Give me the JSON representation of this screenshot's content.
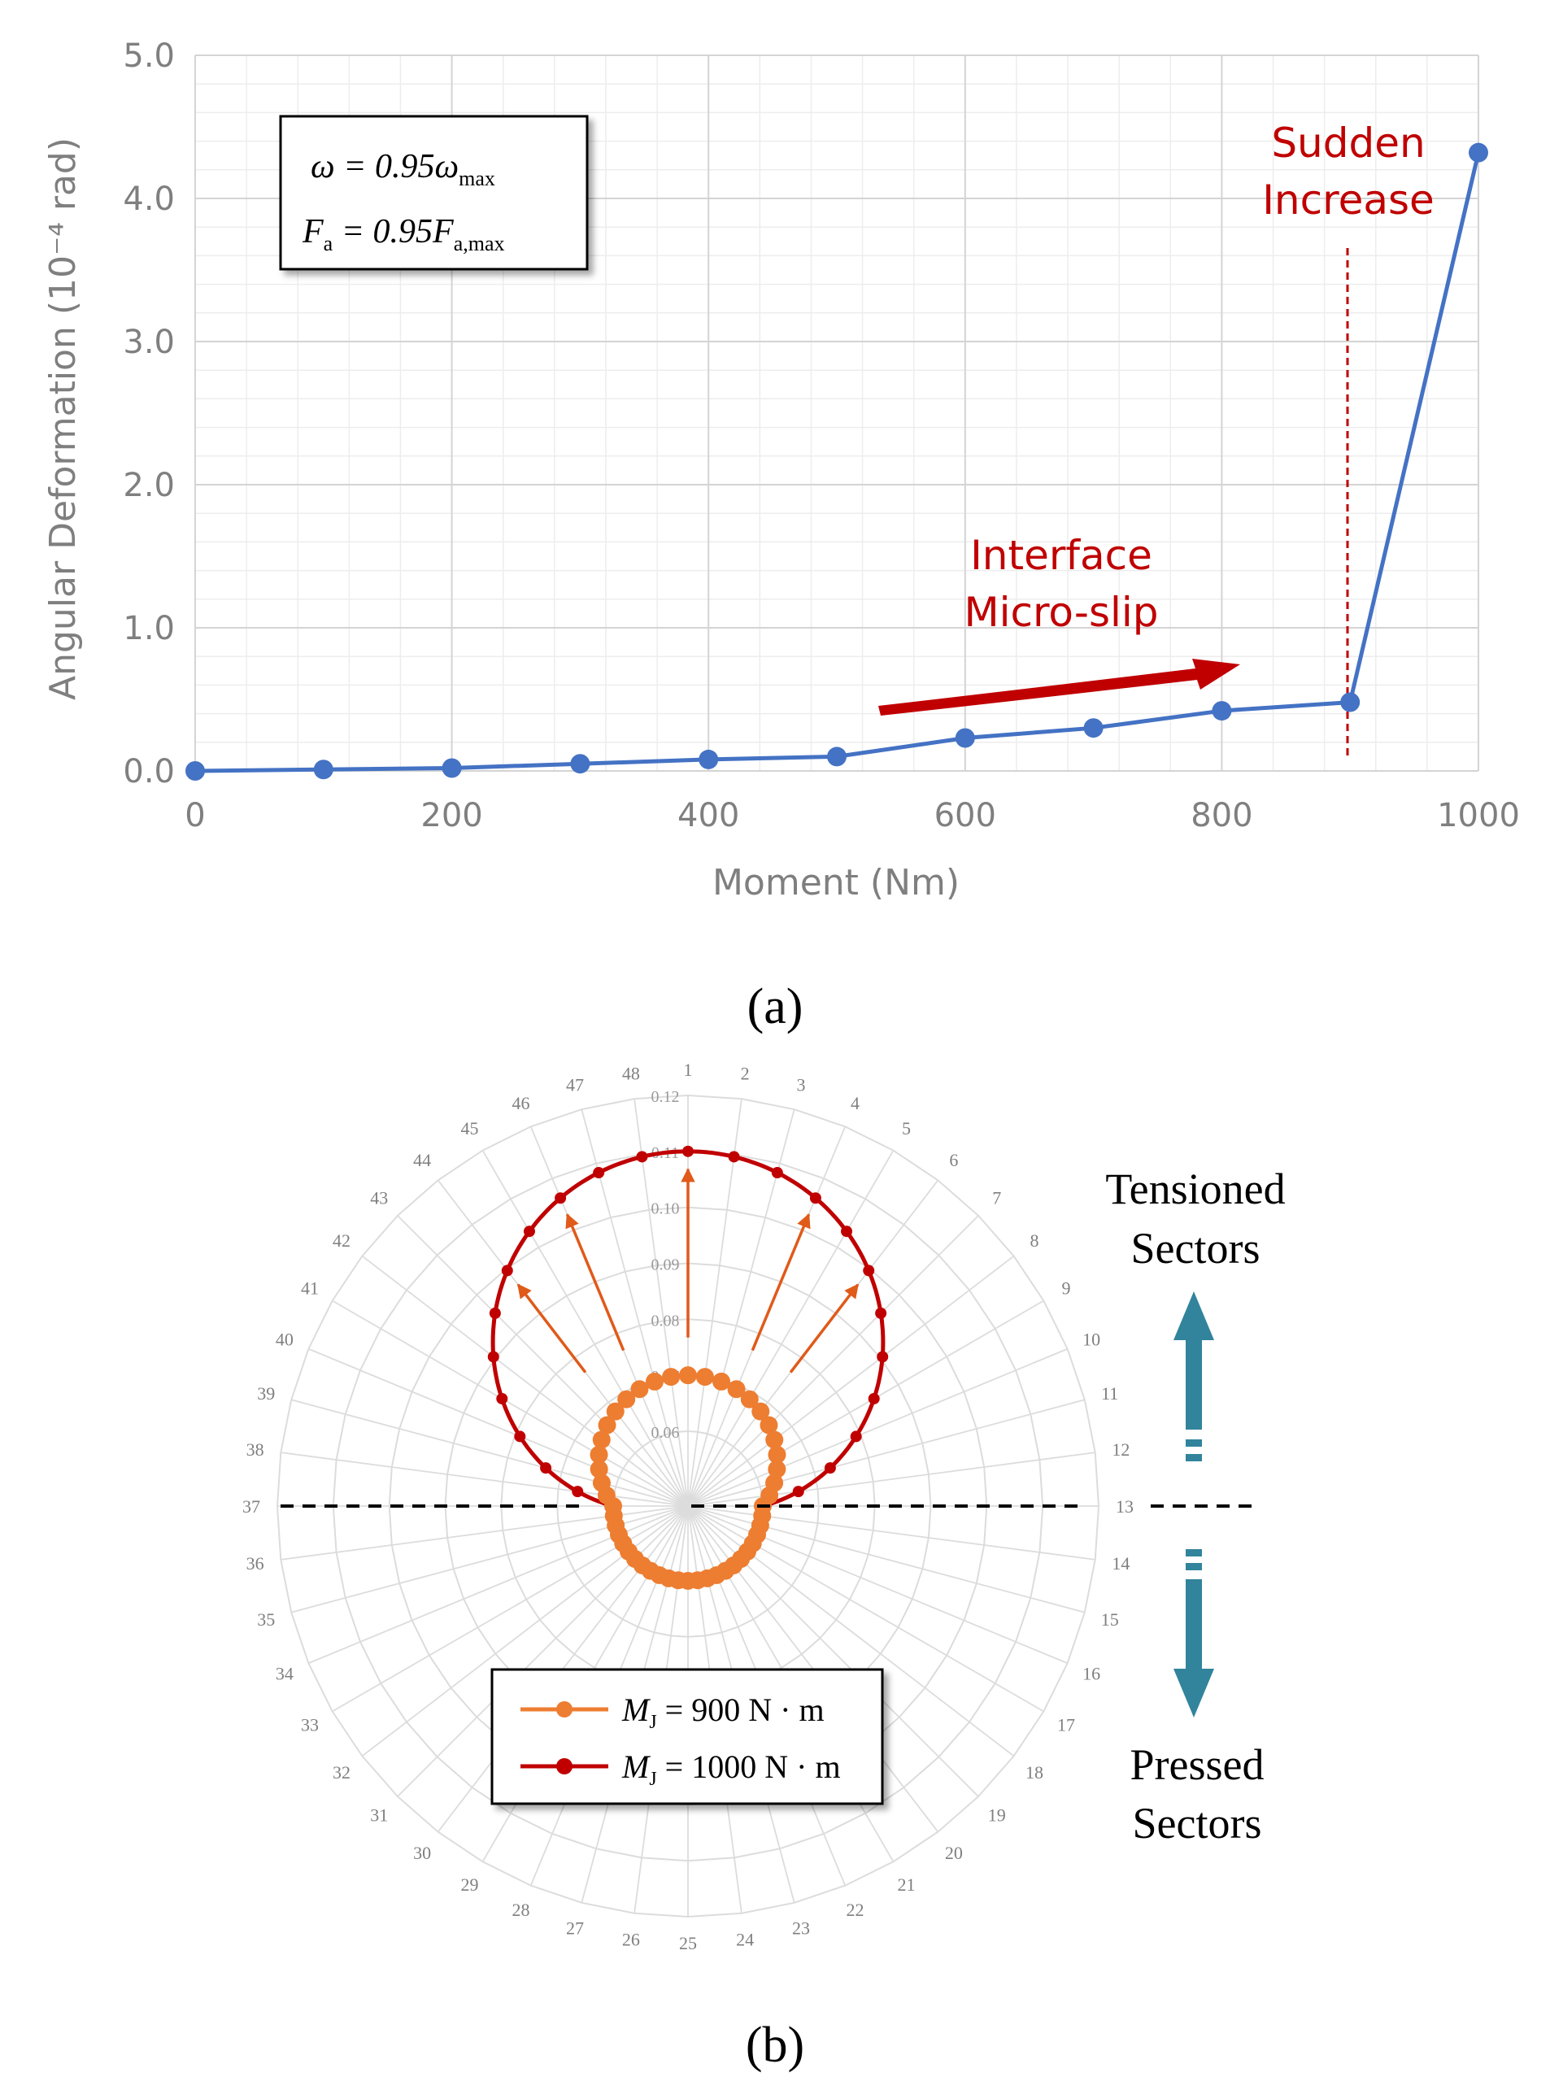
{
  "colors": {
    "line_a": "#4472C4",
    "annotation_red": "#C00000",
    "arrow_red": "#C00000",
    "series_900": "#ED7D31",
    "series_1000": "#C00000",
    "teal": "#31849B",
    "grid": "#D9D9D9",
    "axis_text": "#7F7F7F"
  },
  "chart_data": [
    {
      "type": "line",
      "panel_label": "(a)",
      "xlabel": "Moment (Nm)",
      "ylabel": "Angular Deformation (10⁻⁴ rad)",
      "xlim": [
        0,
        1000
      ],
      "ylim": [
        0,
        5
      ],
      "x_ticks": [
        "0",
        "200",
        "400",
        "600",
        "800",
        "1000"
      ],
      "y_ticks": [
        "0.0",
        "1.0",
        "2.0",
        "3.0",
        "4.0",
        "5.0"
      ],
      "grid": true,
      "x": [
        0,
        100,
        200,
        300,
        400,
        500,
        600,
        700,
        800,
        900,
        1000
      ],
      "y": [
        0.0,
        0.01,
        0.02,
        0.05,
        0.08,
        0.1,
        0.23,
        0.3,
        0.42,
        0.48,
        4.32
      ],
      "annotations": {
        "box_line1": "ω = 0.95ω",
        "box_line1_sub": "max",
        "box_line2": "F",
        "box_line2_sub_a": "a",
        "box_line2_mid": " = 0.95F",
        "box_line2_sub_b": "a,max",
        "interface_line1": "Interface",
        "interface_line2": "Micro-slip",
        "sudden_line1": "Sudden",
        "sudden_line2": "Increase"
      }
    },
    {
      "type": "polar",
      "panel_label": "(b)",
      "sectors": 48,
      "radial_ticks": [
        "0.06",
        "0.07",
        "0.08",
        "0.09",
        "0.10",
        "0.11",
        "0.12"
      ],
      "rlim": [
        0.06,
        0.12
      ],
      "legend_position": "bottom-center",
      "series": [
        {
          "name": "M",
          "name_sub": "J",
          "name_tail": " = 900 N · m",
          "value_top": 0.07,
          "value_bottom": 0.06
        },
        {
          "name": "M",
          "name_sub": "J",
          "name_tail": " = 1000 N · m",
          "value_top": 0.11,
          "value_bottom": 0.06
        }
      ],
      "labels": {
        "tension_line1": "Tensioned",
        "tension_line2": "Sectors",
        "pressed_line1": "Pressed",
        "pressed_line2": "Sectors"
      }
    }
  ]
}
